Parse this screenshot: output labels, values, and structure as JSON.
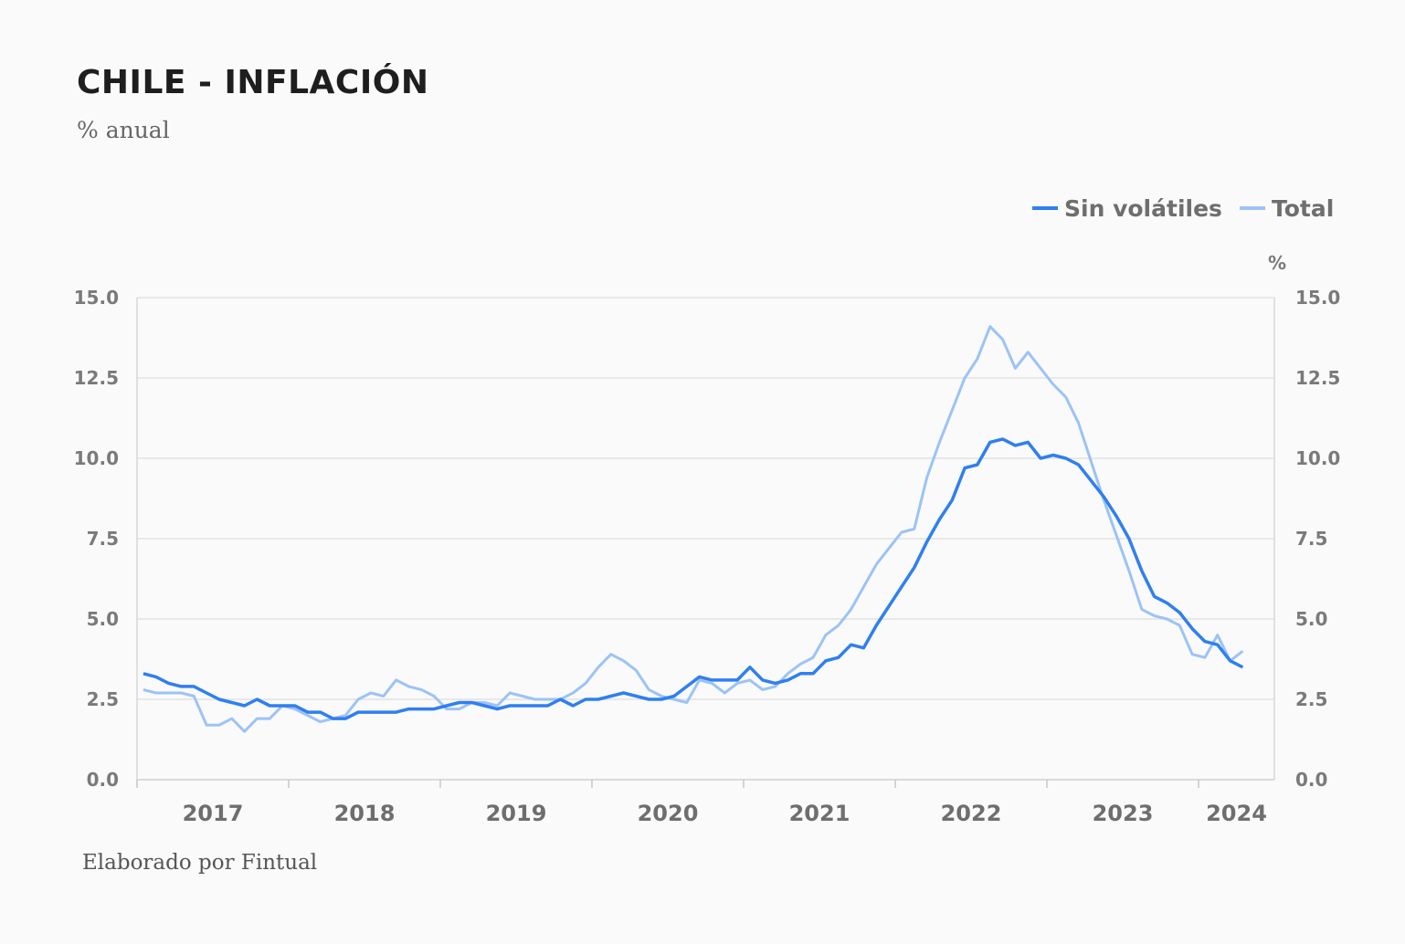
{
  "title": "CHILE - INFLACIÓN",
  "subtitle": "% anual",
  "footer": "Elaborado por Fintual",
  "chart_data": {
    "type": "line",
    "title": "CHILE - INFLACIÓN",
    "subtitle": "% anual",
    "y_unit_label": "%",
    "ylim": [
      0,
      15
    ],
    "yticks": [
      "0.0",
      "2.5",
      "5.0",
      "7.5",
      "10.0",
      "12.5",
      "15.0"
    ],
    "xticks": [
      "2017",
      "2018",
      "2019",
      "2020",
      "2021",
      "2022",
      "2023",
      "2024"
    ],
    "x_start": "2017-01",
    "x_end": "2024-04",
    "frequency": "monthly",
    "grid": true,
    "legend_position": "top-right",
    "series": [
      {
        "name": "Sin volátiles",
        "color": "#2f7ff0",
        "values": [
          3.3,
          3.2,
          3.0,
          2.9,
          2.9,
          2.7,
          2.5,
          2.4,
          2.3,
          2.5,
          2.3,
          2.3,
          2.3,
          2.1,
          2.1,
          1.9,
          1.9,
          2.1,
          2.1,
          2.1,
          2.1,
          2.2,
          2.2,
          2.2,
          2.3,
          2.4,
          2.4,
          2.3,
          2.2,
          2.3,
          2.3,
          2.3,
          2.3,
          2.5,
          2.3,
          2.5,
          2.5,
          2.6,
          2.7,
          2.6,
          2.5,
          2.5,
          2.6,
          2.9,
          3.2,
          3.1,
          3.1,
          3.1,
          3.5,
          3.1,
          3.0,
          3.1,
          3.3,
          3.3,
          3.7,
          3.8,
          4.2,
          4.1,
          4.8,
          5.4,
          6.0,
          6.6,
          7.4,
          8.1,
          8.7,
          9.7,
          9.8,
          10.5,
          10.6,
          10.4,
          10.5,
          10.0,
          10.1,
          10.0,
          9.8,
          9.3,
          8.8,
          8.2,
          7.5,
          6.5,
          5.7,
          5.5,
          5.2,
          4.7,
          4.3,
          4.2,
          3.7,
          3.5
        ]
      },
      {
        "name": "Total",
        "color": "#9cc3f5",
        "values": [
          2.8,
          2.7,
          2.7,
          2.7,
          2.6,
          1.7,
          1.7,
          1.9,
          1.5,
          1.9,
          1.9,
          2.3,
          2.2,
          2.0,
          1.8,
          1.9,
          2.0,
          2.5,
          2.7,
          2.6,
          3.1,
          2.9,
          2.8,
          2.6,
          2.2,
          2.2,
          2.4,
          2.4,
          2.3,
          2.7,
          2.6,
          2.5,
          2.5,
          2.5,
          2.7,
          3.0,
          3.5,
          3.9,
          3.7,
          3.4,
          2.8,
          2.6,
          2.5,
          2.4,
          3.1,
          3.0,
          2.7,
          3.0,
          3.1,
          2.8,
          2.9,
          3.3,
          3.6,
          3.8,
          4.5,
          4.8,
          5.3,
          6.0,
          6.7,
          7.2,
          7.7,
          7.8,
          9.4,
          10.5,
          11.5,
          12.5,
          13.1,
          14.1,
          13.7,
          12.8,
          13.3,
          12.8,
          12.3,
          11.9,
          11.1,
          9.9,
          8.7,
          7.6,
          6.5,
          5.3,
          5.1,
          5.0,
          4.8,
          3.9,
          3.8,
          4.5,
          3.7,
          4.0
        ]
      }
    ]
  }
}
